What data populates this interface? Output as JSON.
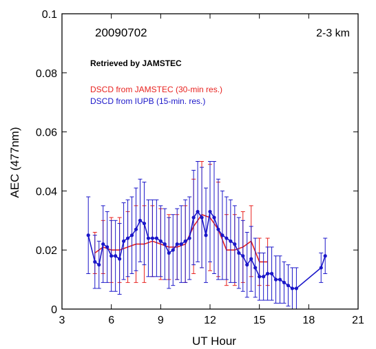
{
  "chart_data": {
    "type": "line",
    "xlabel": "UT Hour",
    "ylabel": "AEC (477nm)",
    "xlim": [
      3,
      21
    ],
    "ylim": [
      0,
      0.1
    ],
    "xticks": [
      3,
      6,
      9,
      12,
      15,
      18,
      21
    ],
    "yticks": [
      0,
      0.02,
      0.04,
      0.06,
      0.08,
      0.1
    ],
    "xtick_labels": [
      "3",
      "6",
      "9",
      "12",
      "15",
      "18",
      "21"
    ],
    "ytick_labels": [
      "0",
      "0.02",
      "0.04",
      "0.06",
      "0.08",
      "0.1"
    ],
    "grid": false,
    "annotations": {
      "date": "20090702",
      "altitude": "2-3 km",
      "retrieved": "Retrieved by JAMSTEC"
    },
    "legend": [
      "DSCD from JAMSTEC (30-min res.)",
      "DSCD from IUPB (15-min. res.)"
    ],
    "series": [
      {
        "name": "DSCD from JAMSTEC (30-min res.)",
        "color": "#e8211e",
        "markers": false,
        "x": [
          5.0,
          5.5,
          6.0,
          6.5,
          7.0,
          7.5,
          8.0,
          8.5,
          9.0,
          9.5,
          10.0,
          10.5,
          11.0,
          11.5,
          12.0,
          12.5,
          13.0,
          13.5,
          14.0,
          14.5,
          15.0,
          15.5
        ],
        "y": [
          0.019,
          0.021,
          0.02,
          0.02,
          0.021,
          0.022,
          0.022,
          0.023,
          0.022,
          0.021,
          0.021,
          0.022,
          0.028,
          0.032,
          0.031,
          0.027,
          0.02,
          0.02,
          0.021,
          0.023,
          0.016,
          0.016
        ],
        "err": [
          0.007,
          0.009,
          0.011,
          0.011,
          0.012,
          0.013,
          0.013,
          0.012,
          0.012,
          0.011,
          0.011,
          0.013,
          0.016,
          0.018,
          0.018,
          0.016,
          0.012,
          0.012,
          0.012,
          0.012,
          0.008,
          0.008
        ]
      },
      {
        "name": "DSCD from IUPB (15-min. res.)",
        "color": "#1a16c9",
        "markers": true,
        "x": [
          4.6,
          5.0,
          5.25,
          5.5,
          5.75,
          6.0,
          6.25,
          6.5,
          6.75,
          7.0,
          7.25,
          7.5,
          7.75,
          8.0,
          8.25,
          8.5,
          8.75,
          9.0,
          9.25,
          9.5,
          9.75,
          10.0,
          10.25,
          10.5,
          10.75,
          11.0,
          11.25,
          11.5,
          11.75,
          12.0,
          12.25,
          12.5,
          12.75,
          13.0,
          13.25,
          13.5,
          13.75,
          14.0,
          14.25,
          14.5,
          14.75,
          15.0,
          15.25,
          15.5,
          15.75,
          16.0,
          16.25,
          16.5,
          16.75,
          17.0,
          17.25,
          18.75,
          19.0
        ],
        "y": [
          0.025,
          0.016,
          0.015,
          0.022,
          0.021,
          0.018,
          0.018,
          0.017,
          0.023,
          0.024,
          0.025,
          0.027,
          0.03,
          0.029,
          0.024,
          0.024,
          0.024,
          0.023,
          0.022,
          0.019,
          0.02,
          0.022,
          0.022,
          0.023,
          0.024,
          0.031,
          0.033,
          0.031,
          0.025,
          0.033,
          0.031,
          0.027,
          0.025,
          0.024,
          0.023,
          0.022,
          0.019,
          0.018,
          0.015,
          0.017,
          0.014,
          0.011,
          0.011,
          0.012,
          0.012,
          0.01,
          0.01,
          0.009,
          0.008,
          0.007,
          0.007,
          0.014,
          0.018
        ],
        "err": [
          0.013,
          0.009,
          0.008,
          0.013,
          0.012,
          0.012,
          0.012,
          0.012,
          0.013,
          0.013,
          0.013,
          0.014,
          0.014,
          0.014,
          0.013,
          0.013,
          0.013,
          0.012,
          0.012,
          0.012,
          0.012,
          0.012,
          0.013,
          0.014,
          0.014,
          0.016,
          0.017,
          0.017,
          0.016,
          0.017,
          0.019,
          0.017,
          0.015,
          0.014,
          0.014,
          0.013,
          0.012,
          0.012,
          0.011,
          0.011,
          0.01,
          0.008,
          0.008,
          0.009,
          0.009,
          0.008,
          0.008,
          0.007,
          0.007,
          0.007,
          0.007,
          0.005,
          0.006
        ]
      }
    ]
  }
}
